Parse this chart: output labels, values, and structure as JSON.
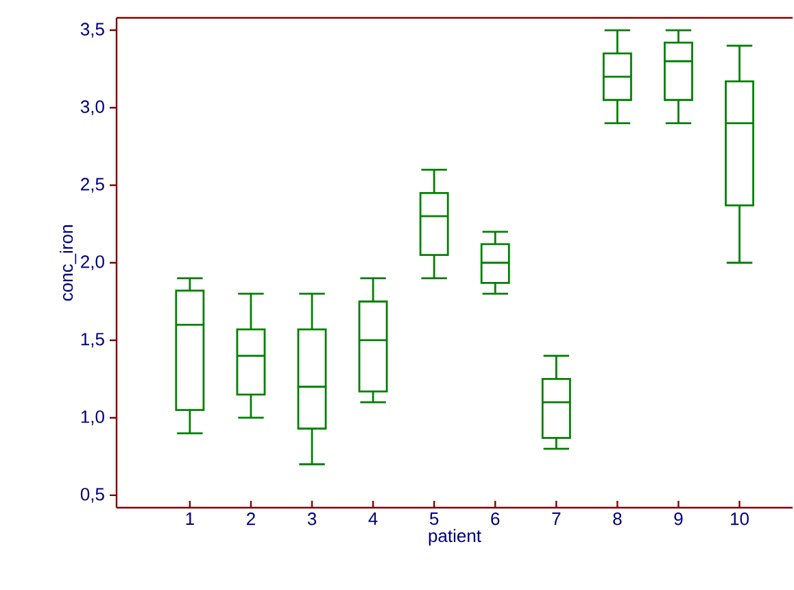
{
  "chart_data": {
    "type": "box",
    "xlabel": "patient",
    "ylabel": "conc_iron",
    "color": "#008000",
    "categories": [
      "1",
      "2",
      "3",
      "4",
      "5",
      "6",
      "7",
      "8",
      "9",
      "10"
    ],
    "boxes": [
      {
        "low": 0.9,
        "q1": 1.05,
        "median": 1.6,
        "q3": 1.82,
        "high": 1.9
      },
      {
        "low": 1.0,
        "q1": 1.15,
        "median": 1.4,
        "q3": 1.57,
        "high": 1.8
      },
      {
        "low": 0.7,
        "q1": 0.93,
        "median": 1.2,
        "q3": 1.57,
        "high": 1.8
      },
      {
        "low": 1.1,
        "q1": 1.17,
        "median": 1.5,
        "q3": 1.75,
        "high": 1.9
      },
      {
        "low": 1.9,
        "q1": 2.05,
        "median": 2.3,
        "q3": 2.45,
        "high": 2.6
      },
      {
        "low": 1.8,
        "q1": 1.87,
        "median": 2.0,
        "q3": 2.12,
        "high": 2.2
      },
      {
        "low": 0.8,
        "q1": 0.87,
        "median": 1.1,
        "q3": 1.25,
        "high": 1.4
      },
      {
        "low": 2.9,
        "q1": 3.05,
        "median": 3.2,
        "q3": 3.35,
        "high": 3.5
      },
      {
        "low": 2.9,
        "q1": 3.05,
        "median": 3.3,
        "q3": 3.42,
        "high": 3.5
      },
      {
        "low": 2.0,
        "q1": 2.37,
        "median": 2.9,
        "q3": 3.17,
        "high": 3.4
      }
    ],
    "ylim": [
      0.42,
      3.58
    ],
    "yticks": [
      {
        "value": 0.5,
        "label": "0,5"
      },
      {
        "value": 1.0,
        "label": "1,0"
      },
      {
        "value": 1.5,
        "label": "1,5"
      },
      {
        "value": 2.0,
        "label": "2,0"
      },
      {
        "value": 2.5,
        "label": "2,5"
      },
      {
        "value": 3.0,
        "label": "3,0"
      },
      {
        "value": 3.5,
        "label": "3,5"
      }
    ],
    "grid": false
  }
}
